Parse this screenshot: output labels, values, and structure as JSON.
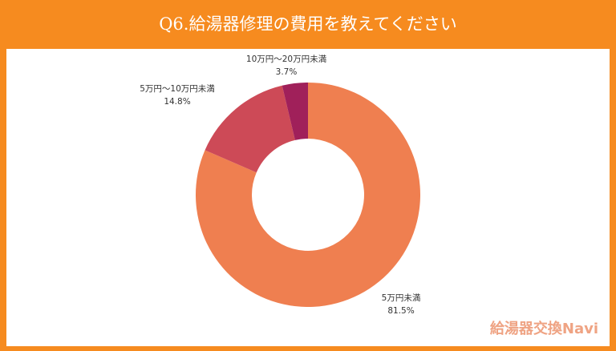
{
  "title": "Q6.給湯器修理の費用を教えてください",
  "logo": "給湯器交換Navi",
  "chart_data": {
    "type": "pie",
    "donut": true,
    "title": "Q6.給湯器修理の費用を教えてください",
    "categories": [
      "5万円未満",
      "5万円〜10万円未満",
      "10万円〜20万円未満"
    ],
    "values": [
      81.5,
      14.8,
      3.7
    ],
    "value_labels": [
      "81.5%",
      "14.8%",
      "3.7%"
    ],
    "colors": [
      "#EF7F50",
      "#CD4A57",
      "#A0205A"
    ]
  }
}
